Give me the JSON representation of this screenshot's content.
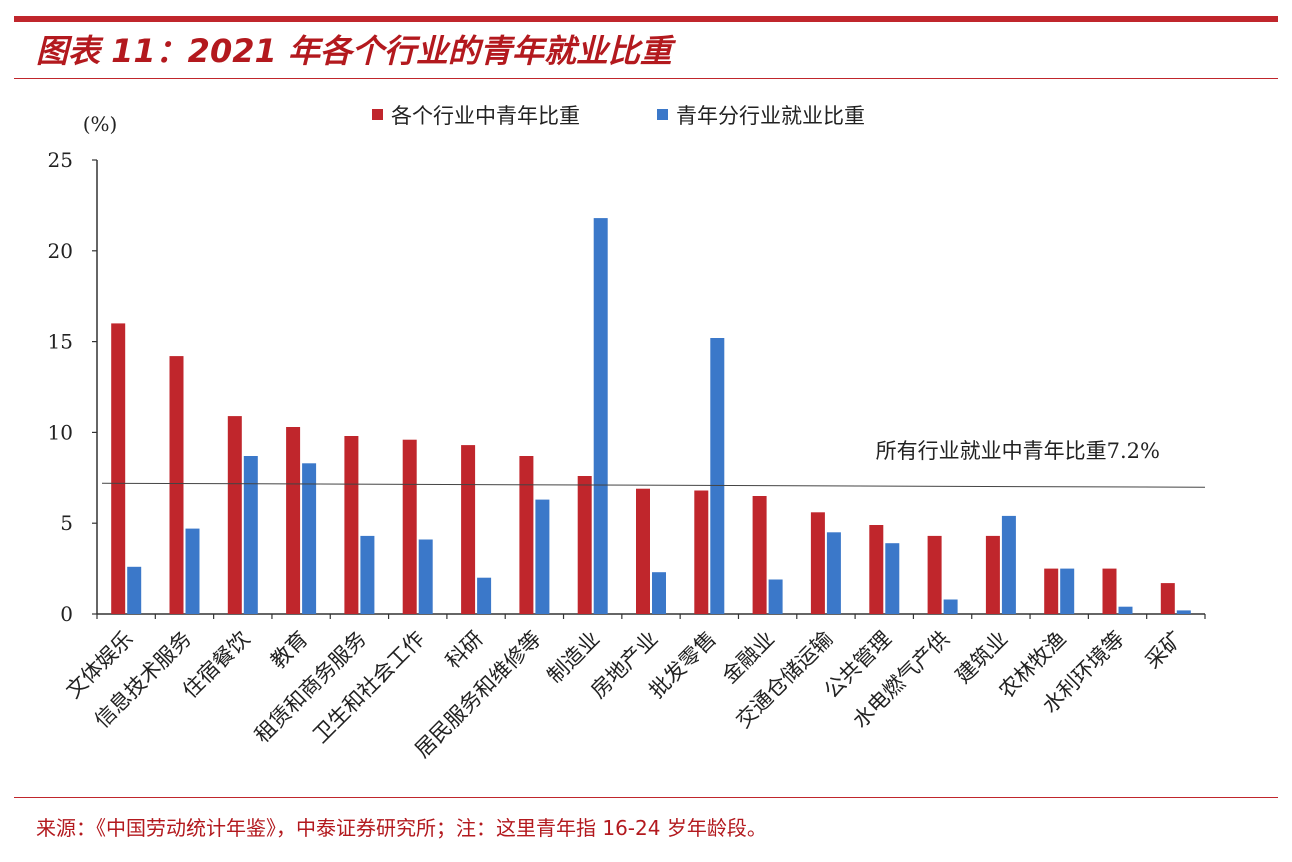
{
  "title": "图表 11：2021 年各个行业的青年就业比重",
  "source": "来源：《中国劳动统计年鉴》，中泰证券研究所；注：这里青年指 16-24 岁年龄段。",
  "colors": {
    "accent": "#c0262c",
    "series_red": "#c0262c",
    "series_blue": "#3b78c9"
  },
  "chart_data": {
    "type": "bar",
    "ylabel": "(%)",
    "ylim": [
      0,
      25
    ],
    "yticks": [
      "0",
      "5",
      "10",
      "15",
      "20",
      "25"
    ],
    "legend_position": "top",
    "categories": [
      "文体娱乐",
      "信息技术服务",
      "住宿餐饮",
      "教育",
      "租赁和商务服务",
      "卫生和社会工作",
      "科研",
      "居民服务和维修等",
      "制造业",
      "房地产业",
      "批发零售",
      "金融业",
      "交通仓储运输",
      "公共管理",
      "水电燃气产供",
      "建筑业",
      "农林牧渔",
      "水利环境等",
      "采矿"
    ],
    "series": [
      {
        "name": "各个行业中青年比重",
        "values": [
          16.0,
          14.2,
          10.9,
          10.3,
          9.8,
          9.6,
          9.3,
          8.7,
          7.6,
          6.9,
          6.8,
          6.5,
          5.6,
          4.9,
          4.3,
          4.3,
          2.5,
          2.5,
          1.7
        ]
      },
      {
        "name": "青年分行业就业比重",
        "values": [
          2.6,
          4.7,
          8.7,
          8.3,
          4.3,
          4.1,
          2.0,
          6.3,
          21.8,
          2.3,
          15.2,
          1.9,
          4.5,
          3.9,
          0.8,
          5.4,
          2.5,
          0.4,
          0.2
        ]
      }
    ],
    "reference_line": {
      "label": "所有行业就业中青年比重7.2%",
      "value": 7.2
    }
  }
}
